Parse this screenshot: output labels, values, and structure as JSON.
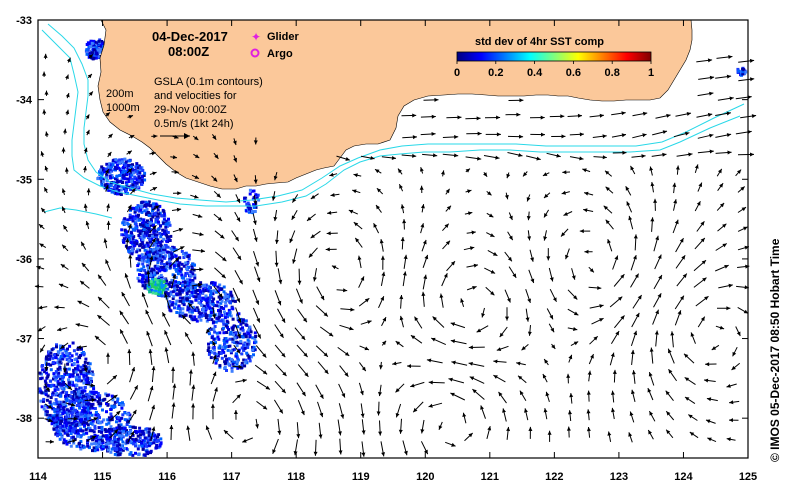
{
  "header": {
    "date": "04-Dec-2017",
    "time": "08:00Z"
  },
  "legend": {
    "glider_label": "Glider",
    "argo_label": "Argo",
    "glider_color": "#e020e0",
    "argo_color": "#e020e0"
  },
  "notes": {
    "contour_200": "200m",
    "contour_1000": "1000m",
    "gsla_line1": "GSLA (0.1m contours)",
    "gsla_line2": "and velocities for",
    "gsla_line3": "29-Nov 00:00Z",
    "scale_label": "0.5m/s (1kt 24h)"
  },
  "colorbar": {
    "title": "std dev of 4hr SST comp",
    "ticks": [
      "0",
      "0.2",
      "0.4",
      "0.6",
      "0.8",
      "1"
    ],
    "colors": [
      "#00007f",
      "#0000ff",
      "#007fff",
      "#00ffff",
      "#7fff7f",
      "#ffff00",
      "#ff7f00",
      "#ff0000",
      "#7f0000"
    ]
  },
  "axes": {
    "x_ticks": [
      "114",
      "115",
      "116",
      "117",
      "118",
      "119",
      "120",
      "121",
      "122",
      "123",
      "124",
      "125"
    ],
    "y_ticks": [
      "-33",
      "-34",
      "-35",
      "-36",
      "-37",
      "-38"
    ],
    "xlim": [
      114,
      125
    ],
    "ylim": [
      -38.5,
      -33
    ]
  },
  "credit": "© IMOS 05-Dec-2017 08:50 Hobart Time",
  "colors": {
    "land": "#fbc89a",
    "isobath": "#29d8e8",
    "arrow": "#000000"
  }
}
